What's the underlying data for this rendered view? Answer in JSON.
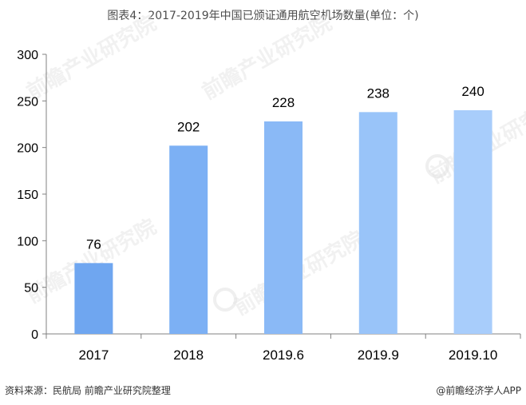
{
  "title": "图表4：2017-2019年中国已颁证通用航空机场数量(单位：个)",
  "source": "资料来源：民航局 前瞻产业研究院整理",
  "brand": "@前瞻经济学人APP",
  "watermark": "前瞻产业研究院",
  "colors": {
    "bars": [
      "#6fa6f0",
      "#7cb0f4",
      "#8ab9f6",
      "#99c4f9",
      "#a8cdfb"
    ],
    "axis": "#808080",
    "text": "#000000"
  },
  "chart_data": {
    "type": "bar",
    "categories": [
      "2017",
      "2018",
      "2019.6",
      "2019.9",
      "2019.10"
    ],
    "values": [
      76,
      202,
      228,
      238,
      240
    ],
    "data_labels": [
      "76",
      "202",
      "228",
      "238",
      "240"
    ],
    "ylim": [
      0,
      300
    ],
    "yticks": [
      0,
      50,
      100,
      150,
      200,
      250,
      300
    ],
    "ytick_labels": [
      "0",
      "50",
      "100",
      "150",
      "200",
      "250",
      "300"
    ],
    "grid": false,
    "legend": "none"
  }
}
